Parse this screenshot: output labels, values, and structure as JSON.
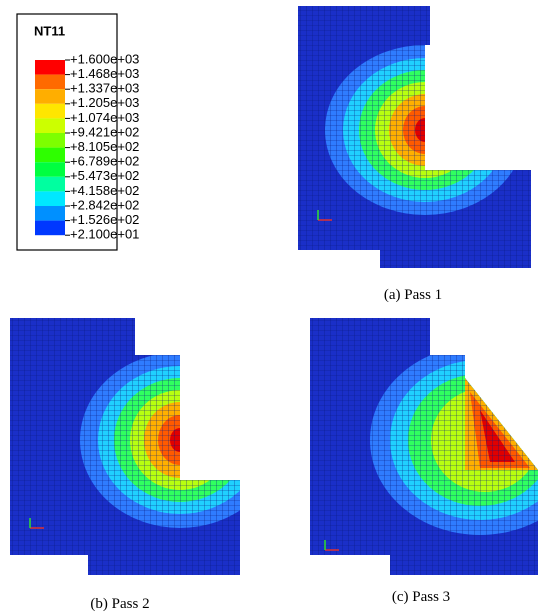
{
  "legend": {
    "title": "NT11",
    "labels": [
      "+1.600e+03",
      "+1.468e+03",
      "+1.337e+03",
      "+1.205e+03",
      "+1.074e+03",
      "+9.421e+02",
      "+8.105e+02",
      "+6.789e+02",
      "+5.473e+02",
      "+4.158e+02",
      "+2.842e+02",
      "+1.526e+02",
      "+2.100e+01"
    ],
    "colors": [
      "#ff0000",
      "#ff6a00",
      "#ffae00",
      "#ffe600",
      "#ccff00",
      "#7dff00",
      "#2eff00",
      "#00ff40",
      "#00ffa0",
      "#00e8ff",
      "#0090ff",
      "#0038ff"
    ]
  },
  "captions": [
    "(a)  Pass  1",
    "(b)  Pass  2",
    "(c)  Pass  3"
  ]
}
